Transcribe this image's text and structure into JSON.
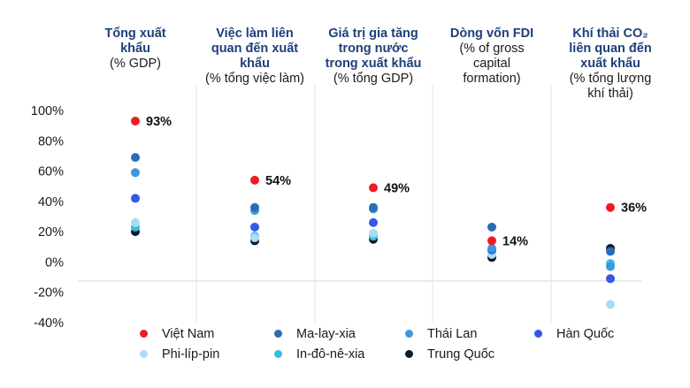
{
  "chart_data": {
    "type": "scatter",
    "categories": [
      {
        "title_lines": [
          "Tổng xuất",
          "khẩu"
        ],
        "subtitle_lines": [
          "(% GDP)"
        ]
      },
      {
        "title_lines": [
          "Việc làm liên",
          "quan đến xuất",
          "khẩu"
        ],
        "subtitle_lines": [
          "(% tổng việc làm)"
        ]
      },
      {
        "title_lines": [
          "Giá trị gia tăng",
          "trong nước",
          "trong xuất khẩu"
        ],
        "subtitle_lines": [
          "(% tổng GDP)"
        ]
      },
      {
        "title_lines": [
          "Dòng vốn FDI"
        ],
        "subtitle_lines": [
          "(% of gross",
          "capital",
          "formation)"
        ]
      },
      {
        "title_lines": [
          "Khí thải CO₂",
          "liên quan đến",
          "xuất khẩu"
        ],
        "subtitle_lines": [
          "(% tổng lượng",
          "khí thải)"
        ]
      }
    ],
    "series": [
      {
        "name": "Việt Nam",
        "color": "#ee1c25",
        "values": [
          93,
          54,
          49,
          14,
          36
        ],
        "labels": [
          "93%",
          "54%",
          "49%",
          "14%",
          "36%"
        ]
      },
      {
        "name": "Ma-lay-xia",
        "color": "#2b6cb8",
        "values": [
          69,
          36,
          36,
          23,
          7
        ]
      },
      {
        "name": "Thái Lan",
        "color": "#3b98dd",
        "values": [
          59,
          34,
          35,
          9,
          -3
        ]
      },
      {
        "name": "Hàn Quốc",
        "color": "#3657e8",
        "values": [
          42,
          23,
          26,
          8,
          -11
        ]
      },
      {
        "name": "Phi-líp-pin",
        "color": "#a9dcf4",
        "values": [
          26,
          16,
          19,
          5,
          -28
        ]
      },
      {
        "name": "In-đô-nê-xia",
        "color": "#35c0db",
        "values": [
          23,
          17,
          17,
          7,
          -1
        ]
      },
      {
        "name": "Trung Quốc",
        "color": "#0e1a2b",
        "values": [
          20,
          14,
          15,
          3,
          9
        ]
      }
    ],
    "ylim": [
      -40,
      100
    ],
    "yticks": [
      100,
      80,
      60,
      40,
      20,
      0,
      -20,
      -40
    ],
    "ytick_labels": [
      "100%",
      "80%",
      "60%",
      "40%",
      "20%",
      "0%",
      "-20%",
      "-40%"
    ],
    "grid": false,
    "legend_position": "bottom"
  }
}
